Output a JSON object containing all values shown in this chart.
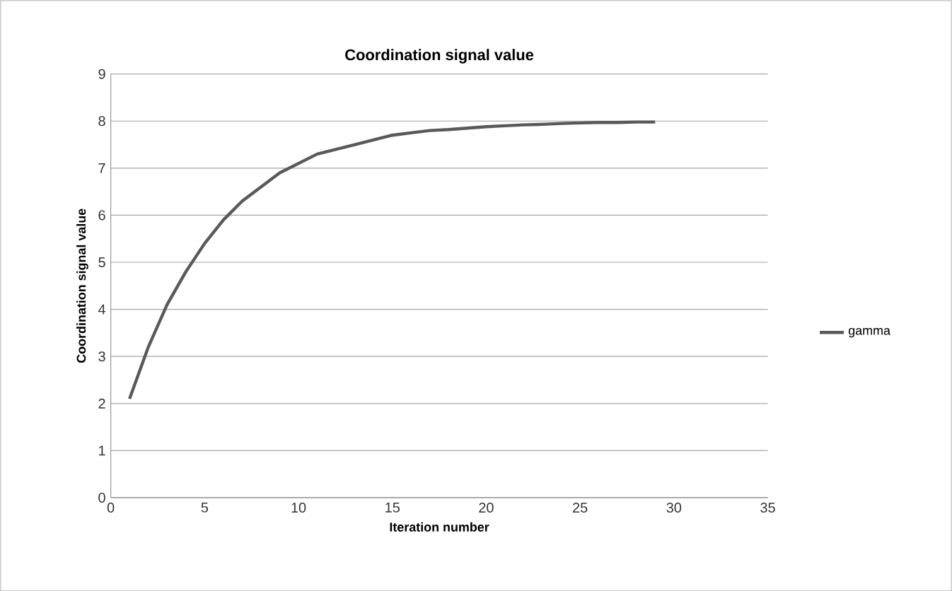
{
  "chart_data": {
    "type": "line",
    "title": "Coordination signal value",
    "xlabel": "Iteration number",
    "ylabel": "Coordination signal value",
    "x": [
      1,
      2,
      3,
      4,
      5,
      6,
      7,
      8,
      9,
      10,
      11,
      12,
      13,
      14,
      15,
      16,
      17,
      18,
      19,
      20,
      21,
      22,
      23,
      24,
      25,
      26,
      27,
      28,
      29
    ],
    "series": [
      {
        "name": "gamma",
        "color": "#595959",
        "values": [
          2.1,
          3.2,
          4.1,
          4.8,
          5.4,
          5.9,
          6.3,
          6.6,
          6.9,
          7.1,
          7.3,
          7.4,
          7.5,
          7.6,
          7.7,
          7.75,
          7.8,
          7.82,
          7.85,
          7.88,
          7.9,
          7.92,
          7.93,
          7.95,
          7.96,
          7.97,
          7.97,
          7.98,
          7.98
        ]
      }
    ],
    "xlim": [
      0,
      35
    ],
    "xticks": [
      0,
      5,
      10,
      15,
      20,
      25,
      30,
      35
    ],
    "ylim": [
      0,
      9
    ],
    "yticks": [
      0,
      1,
      2,
      3,
      4,
      5,
      6,
      7,
      8,
      9
    ],
    "grid": "y",
    "legend": "right",
    "marker": "none",
    "line_style": "solid"
  }
}
